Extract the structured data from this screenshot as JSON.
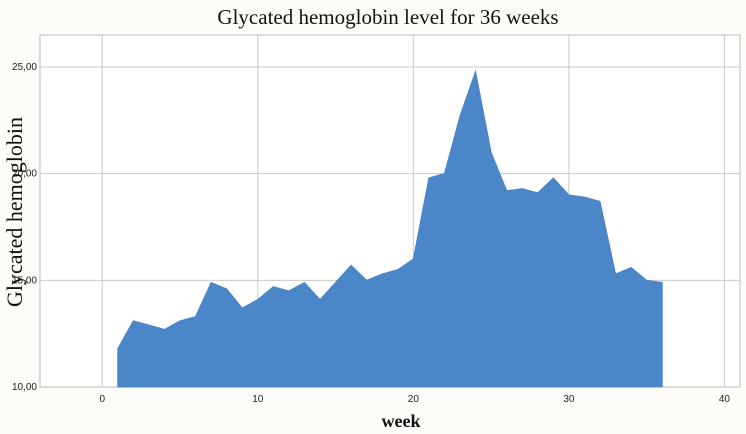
{
  "chart_data": {
    "type": "area",
    "title": "Glycated hemoglobin level for 36 weeks",
    "xlabel": "week",
    "ylabel": "Glycated hemoglobin",
    "xlim": [
      -4,
      41
    ],
    "ylim": [
      10,
      26.5
    ],
    "xticks": [
      0,
      10,
      20,
      30,
      40
    ],
    "xtick_labels": [
      "0",
      "10",
      "20",
      "30",
      "40"
    ],
    "yticks": [
      10,
      15,
      20,
      25
    ],
    "ytick_labels": [
      "10,00",
      "15,00",
      "20,00",
      "25,00"
    ],
    "grid": true,
    "color": "#4a86c8",
    "series": [
      {
        "x": [
          1,
          2,
          3,
          4,
          5,
          6,
          7,
          8,
          9,
          10,
          11,
          12,
          13,
          14,
          15,
          16,
          17,
          18,
          19,
          20,
          21,
          22,
          23,
          24,
          25,
          26,
          27,
          28,
          29,
          30,
          31,
          32,
          33,
          34,
          35,
          36
        ],
        "values": [
          11.8,
          13.1,
          12.9,
          12.7,
          13.1,
          13.3,
          14.9,
          14.6,
          13.7,
          14.1,
          14.7,
          14.5,
          14.9,
          14.1,
          14.9,
          15.7,
          15.0,
          15.3,
          15.5,
          16.0,
          19.8,
          20.0,
          22.7,
          24.8,
          21.0,
          19.2,
          19.3,
          19.1,
          19.8,
          19.0,
          18.9,
          18.7,
          15.3,
          15.6,
          15.0,
          14.9
        ]
      }
    ]
  }
}
